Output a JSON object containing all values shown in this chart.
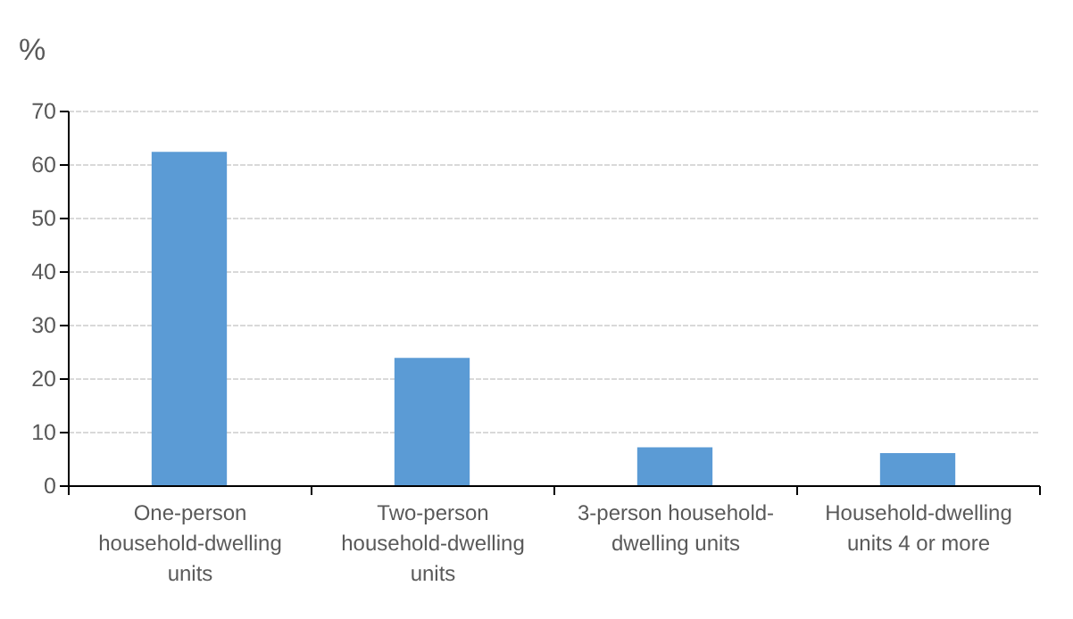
{
  "chart_data": {
    "type": "bar",
    "ylabel": "%",
    "categories": [
      "One-person household-dwelling units",
      "Two-person household-dwelling units",
      "3-person household-dwelling units",
      "Household-dwelling units 4 or more"
    ],
    "values": [
      62.3,
      23.8,
      7.1,
      6.0
    ],
    "color": "#5b9bd5",
    "ylim": [
      0,
      70
    ],
    "yticks": [
      0,
      10,
      20,
      30,
      40,
      50,
      60,
      70
    ],
    "grid": "y"
  }
}
